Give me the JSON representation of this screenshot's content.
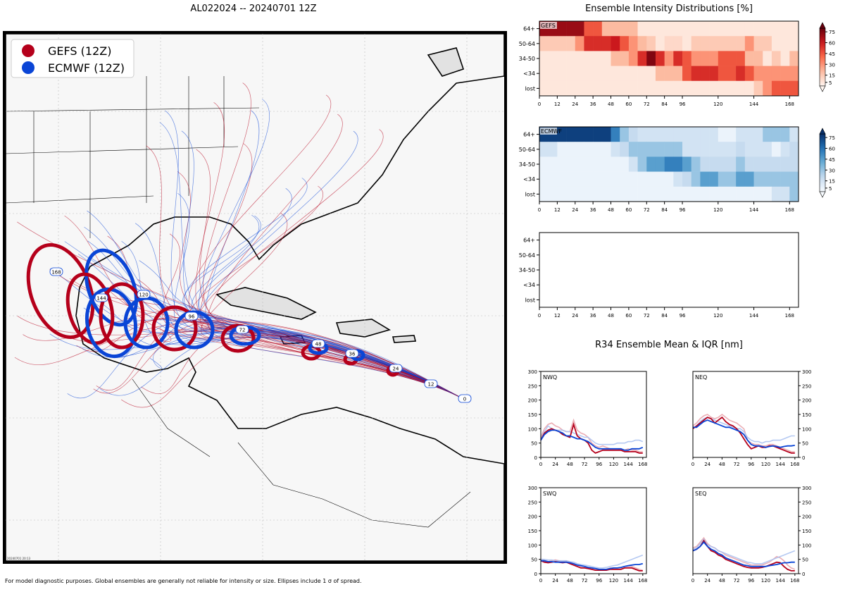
{
  "map_title": "AL022024 -- 20240701 12Z",
  "heatmap_title": "Ensemble Intensity Distributions [%]",
  "r34_title": "R34 Ensemble Mean & IQR [nm]",
  "footer": "For model diagnostic purposes. Global ensembles are generally not reliable for intensity or size. Ellipses include 1 σ of spread.",
  "stamp": "20240701 20:13",
  "colors": {
    "gefs": "#b5001b",
    "ecmwf": "#0a45d6",
    "gefs_light": "#e8a0a8",
    "ecmwf_light": "#a8bff0"
  },
  "legend": [
    {
      "label": "GEFS (12Z)",
      "color": "#b5001b"
    },
    {
      "label": "ECMWF (12Z)",
      "color": "#0a45d6"
    }
  ],
  "map_labels": {
    "ecmwf_hours": [
      "0",
      "12",
      "24",
      "36",
      "48",
      "72",
      "96",
      "120",
      "144",
      "168"
    ],
    "gefs_hours": [
      "0",
      "12",
      "24",
      "36",
      "48",
      "72",
      "96",
      "120",
      "144",
      "168"
    ]
  },
  "chart_data": [
    {
      "type": "heatmap",
      "name": "GEFS",
      "colormap": "reds",
      "rows": [
        "64+",
        "50-64",
        "34-50",
        "<34",
        "lost"
      ],
      "xticks": [
        0,
        12,
        24,
        36,
        48,
        60,
        72,
        84,
        96,
        120,
        144,
        168
      ],
      "xlim": [
        0,
        174
      ],
      "colorbar_ticks": [
        5,
        15,
        30,
        45,
        60,
        75
      ],
      "values": [
        [
          70,
          70,
          70,
          70,
          70,
          45,
          45,
          20,
          20,
          20,
          20,
          5,
          5,
          5,
          5,
          5,
          5,
          5,
          5,
          5,
          5,
          5,
          5,
          5,
          5,
          5,
          5,
          5,
          5
        ],
        [
          15,
          15,
          15,
          15,
          30,
          55,
          55,
          55,
          60,
          45,
          30,
          20,
          15,
          5,
          10,
          10,
          5,
          15,
          15,
          15,
          15,
          15,
          15,
          30,
          15,
          15,
          5,
          5,
          5
        ],
        [
          5,
          5,
          5,
          5,
          5,
          5,
          5,
          5,
          20,
          20,
          30,
          55,
          75,
          55,
          30,
          55,
          45,
          30,
          30,
          30,
          45,
          45,
          45,
          20,
          20,
          5,
          15,
          5,
          20
        ],
        [
          5,
          5,
          5,
          5,
          5,
          5,
          5,
          5,
          5,
          5,
          5,
          5,
          5,
          20,
          20,
          20,
          45,
          55,
          55,
          55,
          45,
          45,
          55,
          45,
          30,
          30,
          30,
          30,
          30
        ],
        [
          5,
          5,
          5,
          5,
          5,
          5,
          5,
          5,
          5,
          5,
          5,
          5,
          5,
          5,
          5,
          5,
          5,
          5,
          5,
          5,
          5,
          5,
          5,
          5,
          15,
          30,
          45,
          45,
          45
        ]
      ]
    },
    {
      "type": "heatmap",
      "name": "ECMWF",
      "colormap": "blues",
      "rows": [
        "64+",
        "50-64",
        "34-50",
        "<34",
        "lost"
      ],
      "xticks": [
        0,
        12,
        24,
        36,
        48,
        60,
        72,
        84,
        96,
        120,
        144,
        168
      ],
      "xlim": [
        0,
        174
      ],
      "colorbar_ticks": [
        5,
        15,
        30,
        45,
        60,
        75
      ],
      "values": [
        [
          75,
          75,
          75,
          75,
          75,
          75,
          75,
          75,
          55,
          30,
          20,
          15,
          15,
          15,
          15,
          15,
          15,
          15,
          15,
          15,
          5,
          5,
          15,
          15,
          15,
          30,
          30,
          30,
          15
        ],
        [
          15,
          15,
          5,
          5,
          5,
          5,
          5,
          5,
          15,
          20,
          30,
          30,
          30,
          30,
          30,
          30,
          15,
          15,
          15,
          15,
          15,
          15,
          20,
          15,
          15,
          15,
          5,
          15,
          20
        ],
        [
          5,
          5,
          5,
          5,
          5,
          5,
          5,
          5,
          5,
          5,
          15,
          30,
          45,
          45,
          55,
          55,
          45,
          30,
          20,
          20,
          20,
          20,
          30,
          20,
          20,
          20,
          20,
          20,
          20
        ],
        [
          5,
          5,
          5,
          5,
          5,
          5,
          5,
          5,
          5,
          5,
          5,
          5,
          5,
          5,
          5,
          15,
          20,
          30,
          45,
          45,
          30,
          30,
          45,
          45,
          30,
          30,
          30,
          30,
          30
        ],
        [
          5,
          5,
          5,
          5,
          5,
          5,
          5,
          5,
          5,
          5,
          5,
          5,
          5,
          5,
          5,
          5,
          5,
          5,
          5,
          5,
          5,
          5,
          5,
          5,
          5,
          5,
          15,
          15,
          30
        ]
      ]
    },
    {
      "type": "heatmap",
      "name": "",
      "rows": [
        "64+",
        "50-64",
        "34-50",
        "<34",
        "lost"
      ],
      "xticks": [
        0,
        12,
        24,
        36,
        48,
        60,
        72,
        84,
        96,
        120,
        144,
        168
      ],
      "xlim": [
        0,
        174
      ],
      "values": []
    },
    {
      "type": "line",
      "name": "NWQ",
      "x": [
        0,
        6,
        12,
        18,
        24,
        30,
        36,
        42,
        48,
        54,
        60,
        66,
        72,
        78,
        84,
        90,
        96,
        102,
        108,
        114,
        120,
        126,
        132,
        138,
        144,
        150,
        156,
        162,
        168
      ],
      "xticks": [
        0,
        24,
        48,
        72,
        96,
        120,
        144,
        168
      ],
      "ylim": [
        0,
        300
      ],
      "yticks": [
        0,
        50,
        100,
        150,
        200,
        250,
        300
      ],
      "series": [
        {
          "name": "GEFS mean",
          "values": [
            60,
            85,
            95,
            100,
            95,
            90,
            80,
            75,
            70,
            115,
            75,
            65,
            60,
            50,
            25,
            15,
            20,
            25,
            25,
            25,
            25,
            25,
            25,
            20,
            20,
            20,
            20,
            15,
            15
          ]
        },
        {
          "name": "ECMWF mean",
          "values": [
            60,
            80,
            90,
            95,
            95,
            90,
            85,
            75,
            75,
            70,
            65,
            65,
            60,
            55,
            45,
            35,
            30,
            30,
            30,
            30,
            30,
            30,
            30,
            25,
            25,
            30,
            30,
            30,
            35
          ]
        },
        {
          "name": "GEFS IQR",
          "values": [
            70,
            100,
            115,
            120,
            110,
            105,
            95,
            90,
            90,
            130,
            95,
            85,
            80,
            70,
            50,
            40,
            35,
            40,
            35,
            30,
            30,
            30,
            25,
            25,
            30,
            25,
            25,
            20,
            20
          ]
        },
        {
          "name": "ECMWF IQR",
          "values": [
            65,
            90,
            110,
            100,
            95,
            95,
            95,
            90,
            90,
            85,
            80,
            75,
            70,
            70,
            60,
            50,
            45,
            45,
            45,
            45,
            45,
            50,
            50,
            50,
            55,
            55,
            60,
            60,
            55
          ]
        }
      ]
    },
    {
      "type": "line",
      "name": "NEQ",
      "x": [
        0,
        6,
        12,
        18,
        24,
        30,
        36,
        42,
        48,
        54,
        60,
        66,
        72,
        78,
        84,
        90,
        96,
        102,
        108,
        114,
        120,
        126,
        132,
        138,
        144,
        150,
        156,
        162,
        168
      ],
      "xticks": [
        0,
        24,
        48,
        72,
        96,
        120,
        144,
        168
      ],
      "ylim": [
        0,
        300
      ],
      "yticks": [
        0,
        50,
        100,
        150,
        200,
        250,
        300
      ],
      "series": [
        {
          "name": "GEFS mean",
          "values": [
            100,
            110,
            120,
            130,
            140,
            135,
            120,
            130,
            140,
            125,
            115,
            110,
            100,
            85,
            65,
            45,
            30,
            35,
            40,
            35,
            35,
            40,
            40,
            35,
            30,
            25,
            20,
            15,
            15
          ]
        },
        {
          "name": "ECMWF mean",
          "values": [
            105,
            105,
            115,
            125,
            130,
            125,
            120,
            115,
            110,
            105,
            105,
            100,
            95,
            90,
            80,
            60,
            45,
            40,
            40,
            38,
            35,
            38,
            40,
            38,
            35,
            38,
            40,
            40,
            42
          ]
        },
        {
          "name": "GEFS IQR",
          "values": [
            110,
            120,
            135,
            145,
            150,
            140,
            135,
            140,
            150,
            140,
            130,
            125,
            120,
            110,
            100,
            60,
            50,
            45,
            45,
            40,
            40,
            45,
            45,
            40,
            35,
            30,
            25,
            20,
            20
          ]
        },
        {
          "name": "ECMWF IQR",
          "values": [
            100,
            110,
            125,
            135,
            140,
            135,
            130,
            125,
            120,
            115,
            110,
            105,
            100,
            100,
            90,
            70,
            60,
            55,
            55,
            50,
            55,
            55,
            60,
            60,
            60,
            65,
            70,
            75,
            75
          ]
        }
      ]
    },
    {
      "type": "line",
      "name": "SWQ",
      "x": [
        0,
        6,
        12,
        18,
        24,
        30,
        36,
        42,
        48,
        54,
        60,
        66,
        72,
        78,
        84,
        90,
        96,
        102,
        108,
        114,
        120,
        126,
        132,
        138,
        144,
        150,
        156,
        162,
        168
      ],
      "xticks": [
        0,
        24,
        48,
        72,
        96,
        120,
        144,
        168
      ],
      "ylim": [
        0,
        300
      ],
      "yticks": [
        0,
        50,
        100,
        150,
        200,
        250,
        300
      ],
      "series": [
        {
          "name": "GEFS mean",
          "values": [
            45,
            40,
            38,
            40,
            42,
            40,
            38,
            40,
            35,
            30,
            25,
            20,
            20,
            18,
            15,
            12,
            12,
            12,
            12,
            15,
            15,
            15,
            15,
            20,
            20,
            20,
            15,
            10,
            10
          ]
        },
        {
          "name": "ECMWF mean",
          "values": [
            45,
            45,
            42,
            42,
            40,
            40,
            40,
            40,
            38,
            35,
            30,
            28,
            25,
            22,
            20,
            18,
            15,
            15,
            15,
            18,
            20,
            20,
            22,
            25,
            28,
            30,
            32,
            32,
            35
          ]
        },
        {
          "name": "GEFS IQR",
          "values": [
            50,
            45,
            42,
            45,
            48,
            45,
            42,
            45,
            40,
            35,
            30,
            25,
            25,
            22,
            20,
            18,
            15,
            15,
            15,
            20,
            20,
            20,
            20,
            25,
            25,
            25,
            20,
            15,
            12
          ]
        },
        {
          "name": "ECMWF IQR",
          "values": [
            50,
            50,
            48,
            48,
            45,
            45,
            45,
            45,
            42,
            40,
            35,
            32,
            30,
            28,
            25,
            22,
            20,
            20,
            22,
            25,
            28,
            30,
            35,
            40,
            45,
            50,
            55,
            60,
            65
          ]
        }
      ]
    },
    {
      "type": "line",
      "name": "SEQ",
      "x": [
        0,
        6,
        12,
        18,
        24,
        30,
        36,
        42,
        48,
        54,
        60,
        66,
        72,
        78,
        84,
        90,
        96,
        102,
        108,
        114,
        120,
        126,
        132,
        138,
        144,
        150,
        156,
        162,
        168
      ],
      "xticks": [
        0,
        24,
        48,
        72,
        96,
        120,
        144,
        168
      ],
      "ylim": [
        0,
        300
      ],
      "yticks": [
        0,
        50,
        100,
        150,
        200,
        250,
        300
      ],
      "series": [
        {
          "name": "GEFS mean",
          "values": [
            80,
            85,
            95,
            115,
            95,
            80,
            75,
            65,
            60,
            50,
            45,
            40,
            35,
            30,
            25,
            22,
            20,
            20,
            20,
            22,
            25,
            30,
            35,
            40,
            38,
            25,
            15,
            10,
            10
          ]
        },
        {
          "name": "ECMWF mean",
          "values": [
            80,
            85,
            95,
            110,
            95,
            85,
            80,
            70,
            65,
            55,
            50,
            45,
            40,
            35,
            30,
            28,
            25,
            25,
            25,
            25,
            25,
            28,
            30,
            32,
            35,
            38,
            38,
            40,
            40
          ]
        },
        {
          "name": "GEFS IQR",
          "values": [
            90,
            95,
            110,
            125,
            105,
            95,
            90,
            80,
            75,
            65,
            60,
            55,
            50,
            45,
            40,
            35,
            30,
            30,
            30,
            30,
            35,
            40,
            50,
            60,
            55,
            45,
            30,
            20,
            15
          ]
        },
        {
          "name": "ECMWF IQR",
          "values": [
            85,
            90,
            105,
            120,
            100,
            95,
            90,
            80,
            75,
            70,
            65,
            60,
            55,
            50,
            45,
            40,
            38,
            35,
            35,
            35,
            40,
            45,
            50,
            55,
            60,
            65,
            70,
            75,
            80
          ]
        }
      ]
    }
  ]
}
